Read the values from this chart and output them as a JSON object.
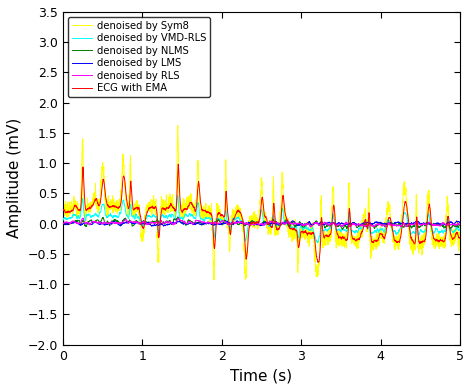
{
  "title": "",
  "xlabel": "Time (s)",
  "ylabel": "Amplitude (mV)",
  "xlim": [
    0,
    5
  ],
  "ylim": [
    -2,
    3.5
  ],
  "yticks": [
    -2,
    -1.5,
    -1,
    -0.5,
    0,
    0.5,
    1,
    1.5,
    2,
    2.5,
    3,
    3.5
  ],
  "xticks": [
    0,
    1,
    2,
    3,
    4,
    5
  ],
  "legend_labels": [
    "ECG with EMA",
    "denoised by Sym8",
    "denoised by LMS",
    "denoised by NLMS",
    "denoised by RLS",
    "denoised by VMD-RLS"
  ],
  "legend_colors": [
    "red",
    "yellow",
    "blue",
    "green",
    "magenta",
    "cyan"
  ],
  "n_points": 2500,
  "seed": 42,
  "figsize": [
    4.71,
    3.9
  ],
  "dpi": 100
}
